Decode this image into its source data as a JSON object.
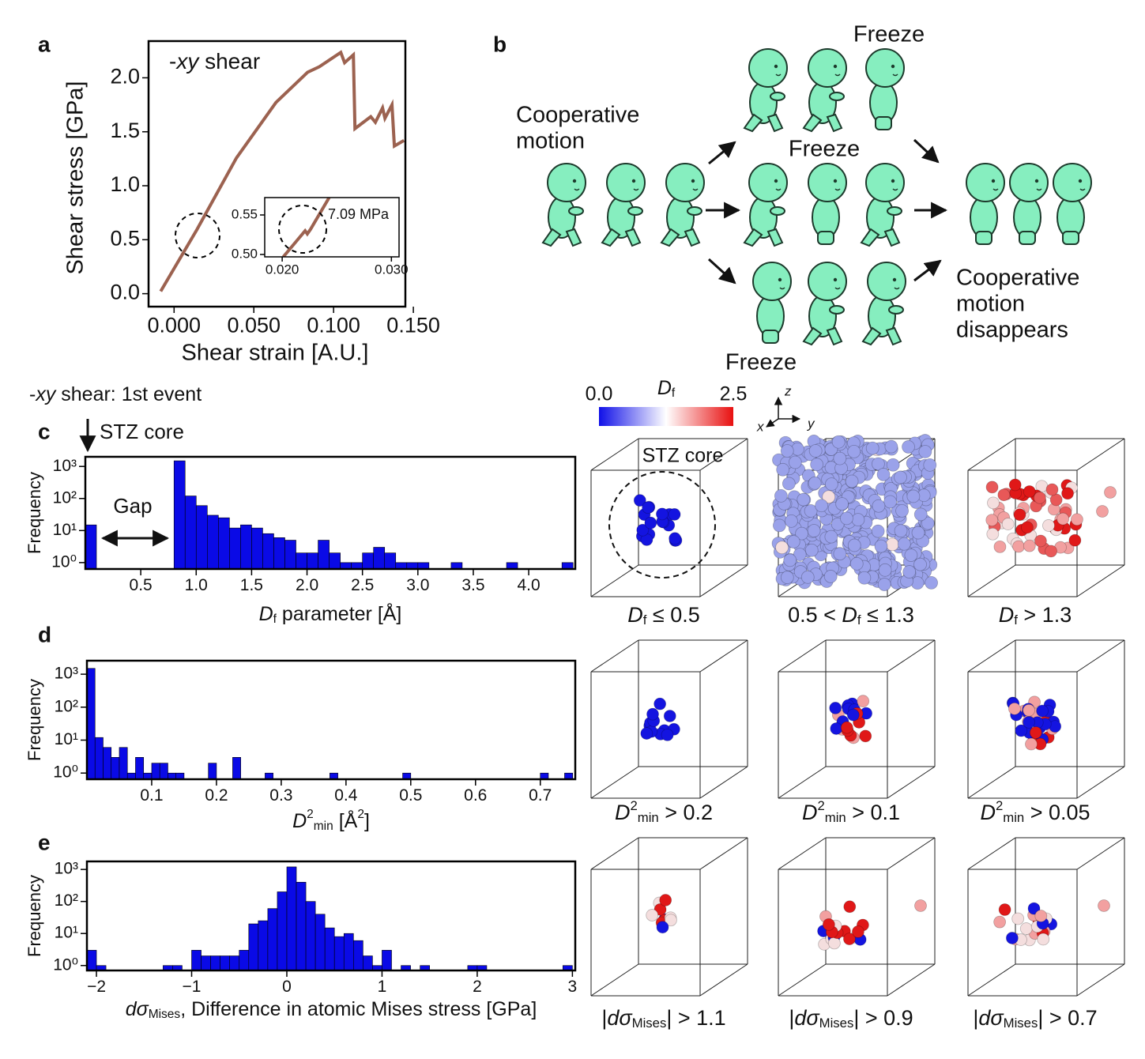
{
  "panel_labels": [
    "a",
    "b",
    "c",
    "d",
    "e"
  ],
  "event_title": {
    "segments": [
      {
        "text": "-",
        "style": ""
      },
      {
        "text": "xy",
        "style": "i"
      },
      {
        "text": " shear: 1st event",
        "style": ""
      }
    ]
  },
  "stz_arrow_label": "STZ core",
  "gap_label": "Gap",
  "chart_data": [
    {
      "type": "line",
      "title": {
        "segments": [
          {
            "text": "-",
            "style": ""
          },
          {
            "text": "xy",
            "style": "i"
          },
          {
            "text": "  shear",
            "style": ""
          }
        ]
      },
      "xlabel": "Shear strain [A.U.]",
      "ylabel": "Shear stress [GPa]",
      "color": "#9c6250",
      "x": [
        -0.0084,
        0.0144,
        0.0391,
        0.0639,
        0.0837,
        0.0911,
        0.1045,
        0.1069,
        0.1124,
        0.1134,
        0.1233,
        0.1262,
        0.1307,
        0.1322,
        0.1366,
        0.1381,
        0.1441
      ],
      "values": [
        0.022,
        0.596,
        1.258,
        1.772,
        2.051,
        2.103,
        2.235,
        2.14,
        2.213,
        1.529,
        1.64,
        1.588,
        1.721,
        1.625,
        1.75,
        1.368,
        1.419
      ],
      "xlim": [
        -0.016,
        0.145
      ],
      "ylim": [
        -0.12,
        2.34
      ],
      "xticks": [
        {
          "value": 0,
          "label": "0.000"
        },
        {
          "value": 0.05,
          "label": "0.050"
        },
        {
          "value": 0.1,
          "label": "0.100"
        },
        {
          "value": 0.15,
          "label": "0.150"
        }
      ],
      "yticks": [
        {
          "value": 0,
          "label": "0.0"
        },
        0.5,
        {
          "value": 1,
          "label": "1.0"
        },
        1.5,
        {
          "value": 2,
          "label": "2.0"
        }
      ]
    },
    {
      "type": "line",
      "annotation": "7.09 MPa",
      "color": "#9c6250",
      "x": [
        0.0201,
        0.0221,
        0.0223,
        0.0226,
        0.0243
      ],
      "values": [
        0.497,
        0.53,
        0.526,
        0.532,
        0.572
      ],
      "xlim": [
        0.0184,
        0.0307
      ],
      "ylim": [
        0.497,
        0.572
      ],
      "xticks": [
        {
          "value": 0.02,
          "label": "0.020"
        },
        {
          "value": 0.03,
          "label": "0.030"
        }
      ],
      "yticks": [
        {
          "value": 0.5,
          "label": "0.50"
        },
        0.55
      ]
    },
    {
      "type": "histogram",
      "ylabel": "Frequency",
      "ylog": true,
      "color": "#0a0ae6",
      "xlabel": {
        "segments": [
          {
            "text": "D",
            "style": "i"
          },
          {
            "text": "f",
            "style": "sub"
          },
          {
            "text": " parameter  [Å]",
            "style": ""
          }
        ]
      },
      "bins": [
        0,
        0.1,
        0.2,
        0.3,
        0.4,
        0.5,
        0.6,
        0.7,
        0.8,
        0.9,
        1,
        1.1,
        1.2,
        1.3,
        1.4,
        1.5,
        1.6,
        1.7,
        1.8,
        1.9,
        2,
        2.1,
        2.2,
        2.3,
        2.4,
        2.5,
        2.6,
        2.7,
        2.8,
        2.9,
        3,
        3.1,
        3.2,
        3.3,
        3.4,
        3.5,
        3.6,
        3.7,
        3.8,
        3.9,
        4,
        4.1,
        4.2,
        4.3,
        4.4
      ],
      "values": [
        15,
        0,
        0,
        0,
        0,
        0,
        0,
        0,
        1500,
        120,
        60,
        30,
        25,
        12,
        15,
        12,
        8,
        6,
        5,
        2,
        2,
        5,
        2,
        1,
        1,
        2,
        3,
        2,
        1,
        1,
        1,
        0,
        0,
        1,
        0,
        0,
        0,
        0,
        1,
        0,
        0,
        0,
        0,
        1
      ],
      "xlim": [
        0,
        4.42
      ],
      "ylim": [
        0.63,
        2000
      ],
      "xticks": [
        0.5,
        {
          "value": 1,
          "label": "1.0"
        },
        1.5,
        {
          "value": 2,
          "label": "2.0"
        },
        2.5,
        {
          "value": 3,
          "label": "3.0"
        },
        3.5,
        {
          "value": 4,
          "label": "4.0"
        }
      ],
      "yticks": [
        {
          "value": 1,
          "label": "10⁰"
        },
        {
          "value": 10,
          "label": "10¹"
        },
        {
          "value": 100,
          "label": "10²"
        },
        {
          "value": 1000,
          "label": "10³"
        }
      ]
    },
    {
      "type": "histogram",
      "ylabel": "Frequency",
      "ylog": true,
      "color": "#0a0ae6",
      "xlabel": {
        "segments": [
          {
            "text": "D",
            "style": "i"
          },
          {
            "text": "2",
            "style": "sup"
          },
          {
            "text": "min",
            "style": "sub"
          },
          {
            "text": "   [Å",
            "style": ""
          },
          {
            "text": "2",
            "style": "sup"
          },
          {
            "text": "]",
            "style": ""
          }
        ]
      },
      "bins": [
        0,
        0.0125,
        0.025,
        0.0375,
        0.05,
        0.0625,
        0.075,
        0.0875,
        0.1,
        0.1125,
        0.125,
        0.1375,
        0.15,
        0.1625,
        0.175,
        0.1875,
        0.2,
        0.2125,
        0.225,
        0.2375,
        0.25,
        0.2625,
        0.275,
        0.2875,
        0.3,
        0.3125,
        0.325,
        0.3375,
        0.35,
        0.3625,
        0.375,
        0.3875,
        0.4,
        0.4125,
        0.425,
        0.4375,
        0.45,
        0.4625,
        0.475,
        0.4875,
        0.5,
        0.5125,
        0.525,
        0.5375,
        0.55,
        0.5625,
        0.575,
        0.5875,
        0.6,
        0.6125,
        0.625,
        0.6375,
        0.65,
        0.6625,
        0.675,
        0.6875,
        0.7,
        0.7125,
        0.725,
        0.7375,
        0.75
      ],
      "values": [
        1500,
        12,
        6,
        3,
        6,
        1,
        3,
        1,
        2,
        2,
        1,
        1,
        0,
        0,
        0,
        2,
        0,
        0,
        3,
        0,
        0,
        0,
        1,
        0,
        0,
        0,
        0,
        0,
        0,
        0,
        1,
        0,
        0,
        0,
        0,
        0,
        0,
        0,
        0,
        1,
        0,
        0,
        0,
        0,
        0,
        0,
        0,
        0,
        0,
        0,
        0,
        0,
        0,
        0,
        0,
        0,
        1,
        0,
        0,
        1
      ],
      "xlim": [
        0,
        0.754
      ],
      "ylim": [
        0.65,
        2570
      ],
      "xticks": [
        0.1,
        0.2,
        0.3,
        0.4,
        0.5,
        0.6,
        0.7
      ],
      "yticks": [
        {
          "value": 1,
          "label": "10⁰"
        },
        {
          "value": 10,
          "label": "10¹"
        },
        {
          "value": 100,
          "label": "10²"
        },
        {
          "value": 1000,
          "label": "10³"
        }
      ]
    },
    {
      "type": "histogram",
      "ylabel": "Frequency",
      "ylog": true,
      "color": "#0a0ae6",
      "xlabel": {
        "segments": [
          {
            "text": "dσ",
            "style": "i"
          },
          {
            "text": "Mises",
            "style": "sub"
          },
          {
            "text": ", Difference in atomic Mises stress [GPa]",
            "style": ""
          }
        ]
      },
      "bins": [
        -2.1,
        -2,
        -1.9,
        -1.8,
        -1.7,
        -1.6,
        -1.5,
        -1.4,
        -1.3,
        -1.2,
        -1.1,
        -1,
        -0.9,
        -0.8,
        -0.7,
        -0.6,
        -0.5,
        -0.4,
        -0.3,
        -0.2,
        -0.1,
        0,
        0.1,
        0.2,
        0.3,
        0.4,
        0.5,
        0.6,
        0.7,
        0.8,
        0.9,
        1,
        1.1,
        1.2,
        1.3,
        1.4,
        1.5,
        1.6,
        1.7,
        1.8,
        1.9,
        2,
        2.1,
        2.2,
        2.3,
        2.4,
        2.5,
        2.6,
        2.7,
        2.8,
        2.9,
        3
      ],
      "values": [
        3,
        1,
        0,
        0,
        0,
        0,
        0,
        0,
        1,
        1,
        0,
        3,
        2,
        2,
        2,
        2,
        3,
        20,
        25,
        60,
        200,
        1200,
        400,
        100,
        40,
        15,
        8,
        10,
        6,
        2,
        1,
        3,
        0,
        1,
        0,
        1,
        0,
        0,
        0,
        0,
        1,
        1,
        0,
        0,
        0,
        0,
        0,
        0,
        0,
        0,
        1
      ],
      "xlim": [
        -2.1,
        3.03
      ],
      "ylim": [
        0.7,
        1780
      ],
      "xticks": [
        {
          "value": -2,
          "label": "−2"
        },
        {
          "value": -1,
          "label": "−1"
        },
        0,
        1,
        2,
        3
      ],
      "yticks": [
        {
          "value": 1,
          "label": "10⁰"
        },
        {
          "value": 10,
          "label": "10¹"
        },
        {
          "value": 100,
          "label": "10²"
        },
        {
          "value": 1000,
          "label": "10³"
        }
      ]
    }
  ],
  "diagram": {
    "left_text": [
      "Cooperative",
      "motion"
    ],
    "freeze_labels": [
      "Freeze",
      "Freeze",
      "Freeze"
    ],
    "right_text": [
      "Cooperative",
      "motion",
      "disappears"
    ]
  },
  "colorbar": {
    "label": {
      "segments": [
        {
          "text": "D",
          "style": "i"
        },
        {
          "text": "f",
          "style": "sub"
        }
      ]
    },
    "lim": [
      0,
      2.5
    ],
    "ticks": [
      {
        "value": 0,
        "label": "0.0"
      },
      {
        "value": 2.5,
        "label": "2.5"
      }
    ],
    "axes": [
      "z",
      "x",
      "y"
    ]
  },
  "cube_core_label": "STZ core",
  "cube_labels": [
    {
      "segments": [
        {
          "text": "D",
          "style": "i"
        },
        {
          "text": "f",
          "style": "sub"
        },
        {
          "text": " ≤ 0.5",
          "style": ""
        }
      ]
    },
    {
      "segments": [
        {
          "text": "0.5 < ",
          "style": ""
        },
        {
          "text": "D",
          "style": "i"
        },
        {
          "text": "f",
          "style": "sub"
        },
        {
          "text": " ≤ 1.3",
          "style": ""
        }
      ]
    },
    {
      "segments": [
        {
          "text": "D",
          "style": "i"
        },
        {
          "text": "f",
          "style": "sub"
        },
        {
          "text": " > 1.3",
          "style": ""
        }
      ]
    },
    {
      "segments": [
        {
          "text": "D",
          "style": "i"
        },
        {
          "text": "2",
          "style": "sup"
        },
        {
          "text": "min",
          "style": "sub"
        },
        {
          "text": " > 0.2",
          "style": ""
        }
      ]
    },
    {
      "segments": [
        {
          "text": "D",
          "style": "i"
        },
        {
          "text": "2",
          "style": "sup"
        },
        {
          "text": "min",
          "style": "sub"
        },
        {
          "text": " > 0.1",
          "style": ""
        }
      ]
    },
    {
      "segments": [
        {
          "text": "D",
          "style": "i"
        },
        {
          "text": "2",
          "style": "sup"
        },
        {
          "text": "min",
          "style": "sub"
        },
        {
          "text": " > 0.05",
          "style": ""
        }
      ]
    },
    {
      "segments": [
        {
          "text": "|",
          "style": ""
        },
        {
          "text": "dσ",
          "style": "i"
        },
        {
          "text": "Mises",
          "style": "sub"
        },
        {
          "text": "| > 1.1",
          "style": ""
        }
      ]
    },
    {
      "segments": [
        {
          "text": "|",
          "style": ""
        },
        {
          "text": "dσ",
          "style": "i"
        },
        {
          "text": "Mises",
          "style": "sub"
        },
        {
          "text": "| > 0.9",
          "style": ""
        }
      ]
    },
    {
      "segments": [
        {
          "text": "|",
          "style": ""
        },
        {
          "text": "dσ",
          "style": "i"
        },
        {
          "text": "Mises",
          "style": "sub"
        },
        {
          "text": "| > 0.7",
          "style": ""
        }
      ]
    }
  ]
}
